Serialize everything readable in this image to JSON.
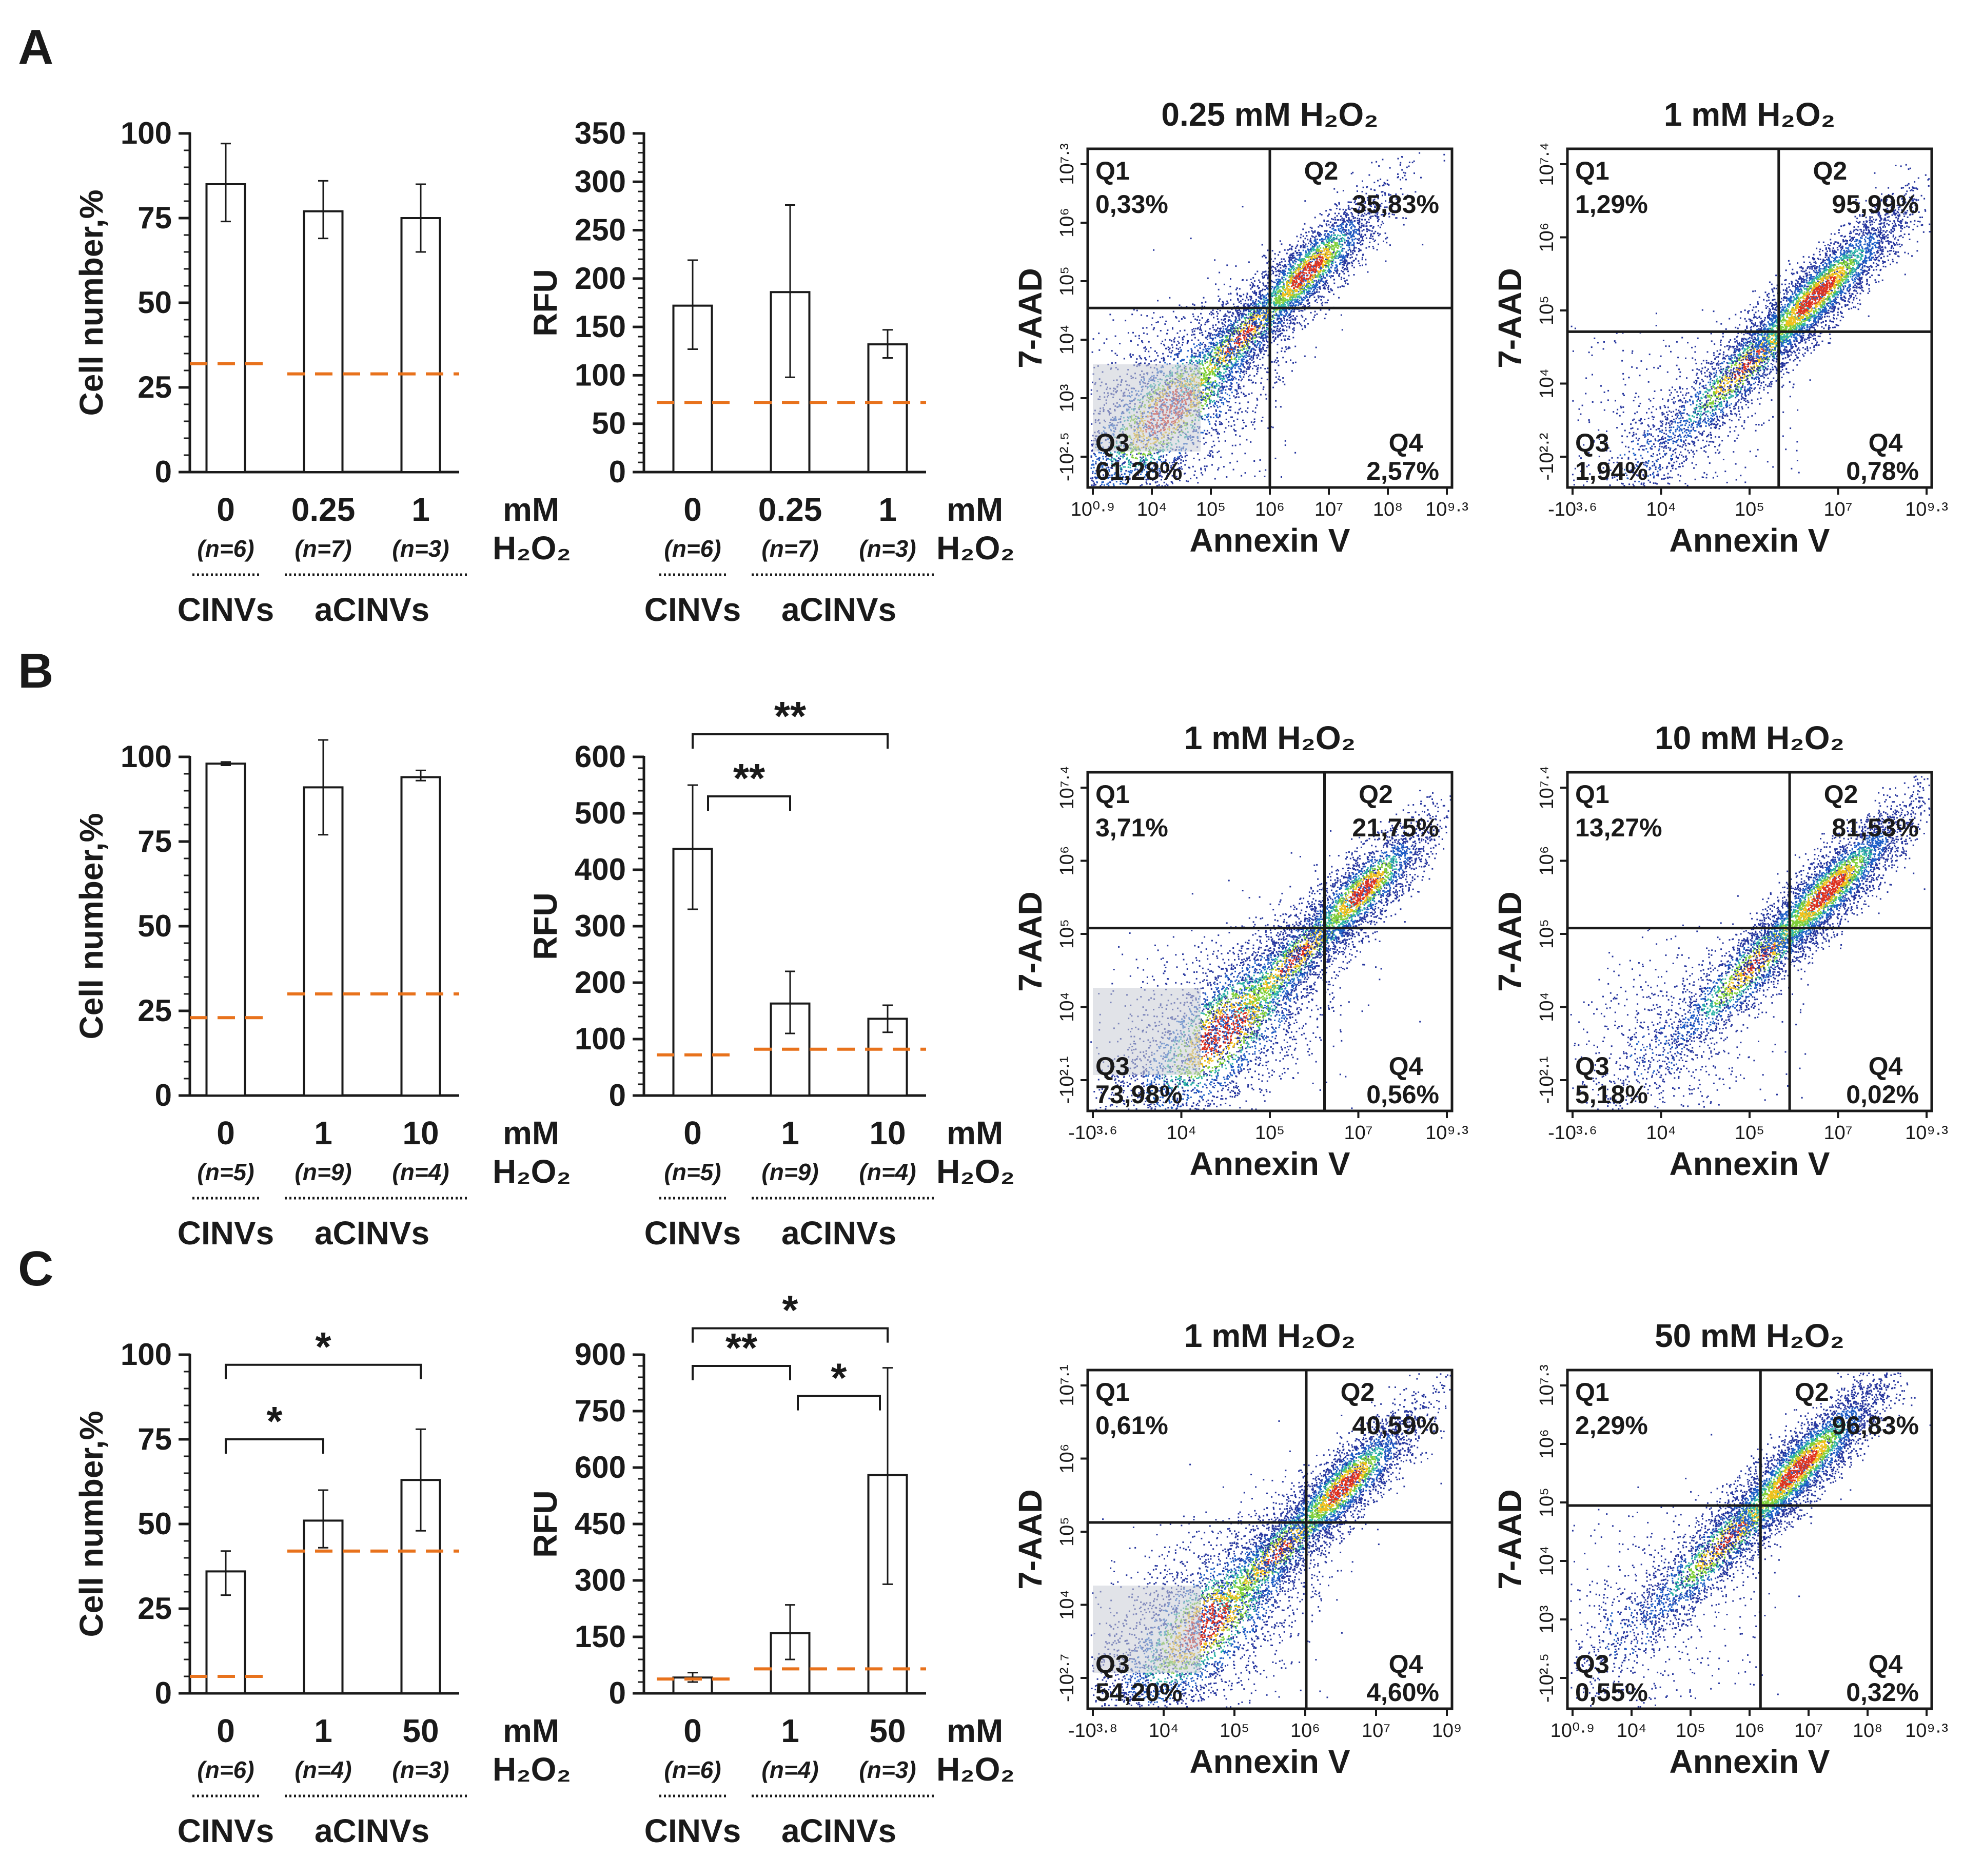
{
  "colors": {
    "ink": "#1a1a1a",
    "control_dash": "#e8721c",
    "q3_patch": "#c9ccd6"
  },
  "panels": [
    {
      "letter": "A",
      "x_unit": [
        "mM",
        "H₂O₂"
      ],
      "groups": [
        "CINVs",
        "aCINVs"
      ],
      "cell_chart": {
        "type": "bar",
        "ylabel": "Cell number,%",
        "ylim": [
          0,
          100
        ],
        "yticks": [
          "0",
          "25",
          "50",
          "75",
          "100"
        ],
        "categories": [
          "0",
          "0.25",
          "1"
        ],
        "ns": [
          "(n=6)",
          "(n=7)",
          "(n=3)"
        ],
        "values": [
          85,
          77,
          75
        ],
        "err_lo": [
          74,
          69,
          65
        ],
        "err_hi": [
          97,
          86,
          85
        ],
        "control_lines": [
          32,
          29,
          29
        ],
        "sig": []
      },
      "rfu_chart": {
        "type": "bar",
        "ylabel": "RFU",
        "ylim": [
          0,
          350
        ],
        "yticks": [
          "0",
          "50",
          "100",
          "150",
          "200",
          "250",
          "300",
          "350"
        ],
        "categories": [
          "0",
          "0.25",
          "1"
        ],
        "ns": [
          "(n=6)",
          "(n=7)",
          "(n=3)"
        ],
        "values": [
          172,
          186,
          132
        ],
        "err_lo": [
          127,
          98,
          118
        ],
        "err_hi": [
          219,
          276,
          147
        ],
        "control_lines": [
          72,
          72,
          72
        ],
        "sig": []
      },
      "flows": [
        {
          "title": "0.25 mM H₂O₂",
          "ylabel": "7-AAD",
          "xlabel": "Annexin V",
          "yticks": [
            "10⁷·³",
            "10⁶",
            "10⁵",
            "10⁴",
            "10³",
            "-10²·⁵"
          ],
          "xticks": [
            "10⁰·⁹",
            "10⁴",
            "10⁵",
            "10⁶",
            "10⁷",
            "10⁸",
            "10⁹·³"
          ],
          "gate_x": 0.5,
          "gate_y": 0.47,
          "q1": "Q1",
          "q1v": "0,33%",
          "q2": "Q2",
          "q2v": "35,83%",
          "q3": "Q3",
          "q3v": "61,28%",
          "q4": "Q4",
          "q4v": "2,57%"
        },
        {
          "title": "1 mM H₂O₂",
          "ylabel": "7-AAD",
          "xlabel": "Annexin V",
          "yticks": [
            "10⁷·⁴",
            "10⁶",
            "10⁵",
            "10⁴",
            "-10²·²"
          ],
          "xticks": [
            "-10³·⁶",
            "10⁴",
            "10⁵",
            "10⁷",
            "10⁹·³"
          ],
          "gate_x": 0.58,
          "gate_y": 0.54,
          "q1": "Q1",
          "q1v": "1,29%",
          "q2": "Q2",
          "q2v": "95,99%",
          "q3": "Q3",
          "q3v": "1,94%",
          "q4": "Q4",
          "q4v": "0,78%"
        }
      ]
    },
    {
      "letter": "B",
      "x_unit": [
        "mM",
        "H₂O₂"
      ],
      "groups": [
        "CINVs",
        "aCINVs"
      ],
      "cell_chart": {
        "type": "bar",
        "ylabel": "Cell number,%",
        "ylim": [
          0,
          100
        ],
        "yticks": [
          "0",
          "25",
          "50",
          "75",
          "100"
        ],
        "categories": [
          "0",
          "1",
          "10"
        ],
        "ns": [
          "(n=5)",
          "(n=9)",
          "(n=4)"
        ],
        "values": [
          98,
          91,
          94
        ],
        "err_lo": [
          97.5,
          77,
          93
        ],
        "err_hi": [
          98.5,
          105,
          96
        ],
        "control_lines": [
          23,
          30,
          30
        ],
        "sig": []
      },
      "rfu_chart": {
        "type": "bar",
        "ylabel": "RFU",
        "ylim": [
          0,
          600
        ],
        "yticks": [
          "0",
          "100",
          "200",
          "300",
          "400",
          "500",
          "600"
        ],
        "categories": [
          "0",
          "1",
          "10"
        ],
        "ns": [
          "(n=5)",
          "(n=9)",
          "(n=4)"
        ],
        "values": [
          437,
          163,
          136
        ],
        "err_lo": [
          330,
          110,
          112
        ],
        "err_hi": [
          550,
          220,
          160
        ],
        "control_lines": [
          72,
          82,
          82
        ],
        "sig": [
          {
            "from": 0,
            "to": 2,
            "label": "**",
            "level": 640
          },
          {
            "from": 0,
            "to": 1,
            "label": "**",
            "level": 530
          }
        ]
      },
      "flows": [
        {
          "title": "1 mM H₂O₂",
          "ylabel": "7-AAD",
          "xlabel": "Annexin V",
          "yticks": [
            "10⁷·⁴",
            "10⁶",
            "10⁵",
            "10⁴",
            "-10²·¹"
          ],
          "xticks": [
            "-10³·⁶",
            "10⁴",
            "10⁵",
            "10⁷",
            "10⁹·³"
          ],
          "gate_x": 0.65,
          "gate_y": 0.46,
          "q1": "Q1",
          "q1v": "3,71%",
          "q2": "Q2",
          "q2v": "21,75%",
          "q3": "Q3",
          "q3v": "73,98%",
          "q4": "Q4",
          "q4v": "0,56%"
        },
        {
          "title": "10 mM H₂O₂",
          "ylabel": "7-AAD",
          "xlabel": "Annexin V",
          "yticks": [
            "10⁷·⁴",
            "10⁶",
            "10⁵",
            "10⁴",
            "-10²·¹"
          ],
          "xticks": [
            "-10³·⁶",
            "10⁴",
            "10⁵",
            "10⁷",
            "10⁹·³"
          ],
          "gate_x": 0.61,
          "gate_y": 0.46,
          "q1": "Q1",
          "q1v": "13,27%",
          "q2": "Q2",
          "q2v": "81,53%",
          "q3": "Q3",
          "q3v": "5,18%",
          "q4": "Q4",
          "q4v": "0,02%"
        }
      ]
    },
    {
      "letter": "C",
      "x_unit": [
        "mM",
        "H₂O₂"
      ],
      "groups": [
        "CINVs",
        "aCINVs"
      ],
      "cell_chart": {
        "type": "bar",
        "ylabel": "Cell number,%",
        "ylim": [
          0,
          100
        ],
        "yticks": [
          "0",
          "25",
          "50",
          "75",
          "100"
        ],
        "categories": [
          "0",
          "1",
          "50"
        ],
        "ns": [
          "(n=6)",
          "(n=4)",
          "(n=3)"
        ],
        "values": [
          36,
          51,
          63
        ],
        "err_lo": [
          29,
          43,
          48
        ],
        "err_hi": [
          42,
          60,
          78
        ],
        "control_lines": [
          5,
          42,
          42
        ],
        "sig": [
          {
            "from": 0,
            "to": 2,
            "label": "*",
            "level": 97
          },
          {
            "from": 0,
            "to": 1,
            "label": "*",
            "level": 75
          }
        ]
      },
      "rfu_chart": {
        "type": "bar",
        "ylabel": "RFU",
        "ylim": [
          0,
          900
        ],
        "yticks": [
          "0",
          "150",
          "300",
          "450",
          "600",
          "750",
          "900"
        ],
        "categories": [
          "0",
          "1",
          "50"
        ],
        "ns": [
          "(n=6)",
          "(n=4)",
          "(n=3)"
        ],
        "values": [
          42,
          160,
          580
        ],
        "err_lo": [
          30,
          90,
          290
        ],
        "err_hi": [
          55,
          235,
          865
        ],
        "control_lines": [
          38,
          65,
          65
        ],
        "sig": [
          {
            "from": 0,
            "to": 2,
            "label": "*",
            "level": 970
          },
          {
            "from": 0,
            "to": 1,
            "label": "**",
            "level": 870
          },
          {
            "from": 1,
            "to": 2,
            "label": "*",
            "level": 790
          }
        ]
      },
      "flows": [
        {
          "title": "1 mM H₂O₂",
          "ylabel": "7-AAD",
          "xlabel": "Annexin V",
          "yticks": [
            "10⁷·¹",
            "10⁶",
            "10⁵",
            "10⁴",
            "-10²·⁷"
          ],
          "xticks": [
            "-10³·⁸",
            "10⁴",
            "10⁵",
            "10⁶",
            "10⁷",
            "10⁹"
          ],
          "gate_x": 0.6,
          "gate_y": 0.45,
          "q1": "Q1",
          "q1v": "0,61%",
          "q2": "Q2",
          "q2v": "40,59%",
          "q3": "Q3",
          "q3v": "54,20%",
          "q4": "Q4",
          "q4v": "4,60%"
        },
        {
          "title": "50 mM H₂O₂",
          "ylabel": "7-AAD",
          "xlabel": "Annexin V",
          "yticks": [
            "10⁷·³",
            "10⁶",
            "10⁵",
            "10⁴",
            "10³",
            "-10²·⁵"
          ],
          "xticks": [
            "10⁰·⁹",
            "10⁴",
            "10⁵",
            "10⁶",
            "10⁷",
            "10⁸",
            "10⁹·³"
          ],
          "gate_x": 0.53,
          "gate_y": 0.4,
          "q1": "Q1",
          "q1v": "2,29%",
          "q2": "Q2",
          "q2v": "96,83%",
          "q3": "Q3",
          "q3v": "0,55%",
          "q4": "Q4",
          "q4v": "0,32%"
        }
      ]
    }
  ],
  "chart_data": [
    {
      "type": "bar",
      "panel": "A",
      "title": "",
      "xlabel": "mM H₂O₂",
      "ylabel": "Cell number,%",
      "ylim": [
        0,
        100
      ],
      "categories": [
        "0",
        "0.25",
        "1"
      ],
      "series": [
        {
          "name": "Cell number,%",
          "values": [
            85,
            77,
            75
          ]
        }
      ],
      "control_lines": [
        32,
        29,
        29
      ]
    },
    {
      "type": "bar",
      "panel": "A",
      "title": "",
      "xlabel": "mM H₂O₂",
      "ylabel": "RFU",
      "ylim": [
        0,
        350
      ],
      "categories": [
        "0",
        "0.25",
        "1"
      ],
      "series": [
        {
          "name": "RFU",
          "values": [
            172,
            186,
            132
          ]
        }
      ],
      "control_lines": [
        72,
        72,
        72
      ]
    },
    {
      "type": "scatter",
      "panel": "A",
      "title": "0.25 mM H₂O₂",
      "xlabel": "Annexin V",
      "ylabel": "7-AAD",
      "quadrants": {
        "Q1": "0,33%",
        "Q2": "35,83%",
        "Q3": "61,28%",
        "Q4": "2,57%"
      }
    },
    {
      "type": "scatter",
      "panel": "A",
      "title": "1 mM H₂O₂",
      "xlabel": "Annexin V",
      "ylabel": "7-AAD",
      "quadrants": {
        "Q1": "1,29%",
        "Q2": "95,99%",
        "Q3": "1,94%",
        "Q4": "0,78%"
      }
    },
    {
      "type": "bar",
      "panel": "B",
      "title": "",
      "xlabel": "mM H₂O₂",
      "ylabel": "Cell number,%",
      "ylim": [
        0,
        100
      ],
      "categories": [
        "0",
        "1",
        "10"
      ],
      "series": [
        {
          "name": "Cell number,%",
          "values": [
            98,
            91,
            94
          ]
        }
      ],
      "control_lines": [
        23,
        30,
        30
      ]
    },
    {
      "type": "bar",
      "panel": "B",
      "title": "",
      "xlabel": "mM H₂O₂",
      "ylabel": "RFU",
      "ylim": [
        0,
        600
      ],
      "categories": [
        "0",
        "1",
        "10"
      ],
      "series": [
        {
          "name": "RFU",
          "values": [
            437,
            163,
            136
          ]
        }
      ],
      "control_lines": [
        72,
        82,
        82
      ]
    },
    {
      "type": "scatter",
      "panel": "B",
      "title": "1 mM H₂O₂",
      "xlabel": "Annexin V",
      "ylabel": "7-AAD",
      "quadrants": {
        "Q1": "3,71%",
        "Q2": "21,75%",
        "Q3": "73,98%",
        "Q4": "0,56%"
      }
    },
    {
      "type": "scatter",
      "panel": "B",
      "title": "10 mM H₂O₂",
      "xlabel": "Annexin V",
      "ylabel": "7-AAD",
      "quadrants": {
        "Q1": "13,27%",
        "Q2": "81,53%",
        "Q3": "5,18%",
        "Q4": "0,02%"
      }
    },
    {
      "type": "bar",
      "panel": "C",
      "title": "",
      "xlabel": "mM H₂O₂",
      "ylabel": "Cell number,%",
      "ylim": [
        0,
        100
      ],
      "categories": [
        "0",
        "1",
        "50"
      ],
      "series": [
        {
          "name": "Cell number,%",
          "values": [
            36,
            51,
            63
          ]
        }
      ],
      "control_lines": [
        5,
        42,
        42
      ]
    },
    {
      "type": "bar",
      "panel": "C",
      "title": "",
      "xlabel": "mM H₂O₂",
      "ylabel": "RFU",
      "ylim": [
        0,
        900
      ],
      "categories": [
        "0",
        "1",
        "50"
      ],
      "series": [
        {
          "name": "RFU",
          "values": [
            42,
            160,
            580
          ]
        }
      ],
      "control_lines": [
        38,
        65,
        65
      ]
    },
    {
      "type": "scatter",
      "panel": "C",
      "title": "1 mM H₂O₂",
      "xlabel": "Annexin V",
      "ylabel": "7-AAD",
      "quadrants": {
        "Q1": "0,61%",
        "Q2": "40,59%",
        "Q3": "54,20%",
        "Q4": "4,60%"
      }
    },
    {
      "type": "scatter",
      "panel": "C",
      "title": "50 mM H₂O₂",
      "xlabel": "Annexin V",
      "ylabel": "7-AAD",
      "quadrants": {
        "Q1": "2,29%",
        "Q2": "96,83%",
        "Q3": "0,55%",
        "Q4": "0,32%"
      }
    }
  ]
}
